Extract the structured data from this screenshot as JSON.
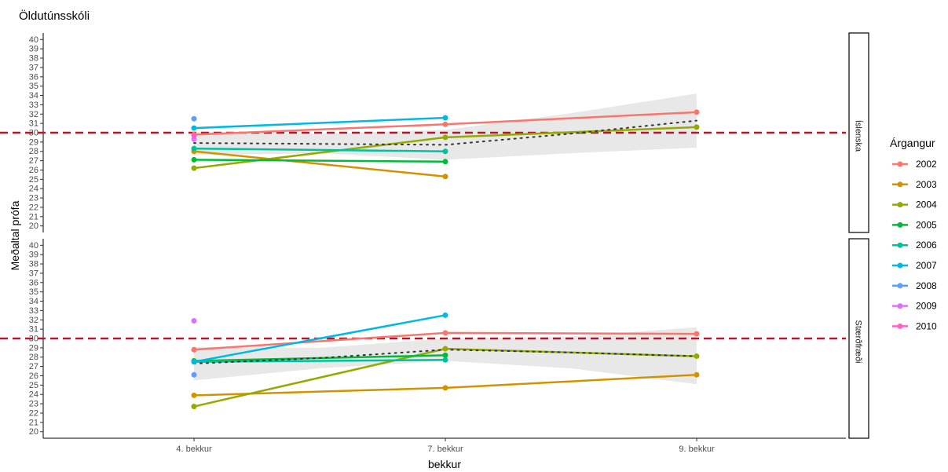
{
  "chart_data": {
    "type": "line",
    "title": "Öldutúnsskóli",
    "xlabel": "bekkur",
    "ylabel": "Meðaltal prófa",
    "categories": [
      "4. bekkur",
      "7. bekkur",
      "9. bekkur"
    ],
    "ylim": [
      19.3,
      40.7
    ],
    "yticks": [
      20,
      21,
      22,
      23,
      24,
      25,
      26,
      27,
      28,
      29,
      30,
      31,
      32,
      33,
      34,
      35,
      36,
      37,
      38,
      39,
      40
    ],
    "reference_line": 30,
    "reference_color": "#b2182b",
    "grid": false,
    "legend": {
      "title": "Árgangur",
      "position": "right",
      "entries": [
        {
          "name": "2002",
          "color": "#F8766D"
        },
        {
          "name": "2003",
          "color": "#D39200"
        },
        {
          "name": "2004",
          "color": "#93AA00"
        },
        {
          "name": "2005",
          "color": "#00BA38"
        },
        {
          "name": "2006",
          "color": "#00C19F"
        },
        {
          "name": "2007",
          "color": "#00B9E3"
        },
        {
          "name": "2008",
          "color": "#619CFF"
        },
        {
          "name": "2009",
          "color": "#DB72FB"
        },
        {
          "name": "2010",
          "color": "#FF61C3"
        }
      ]
    },
    "panels": [
      {
        "strip": "Íslenska",
        "series": [
          {
            "name": "2002",
            "points": [
              [
                0,
                29.8
              ],
              [
                1,
                30.9
              ],
              [
                2,
                32.2
              ]
            ]
          },
          {
            "name": "2003",
            "points": [
              [
                0,
                28.0
              ],
              [
                1,
                25.3
              ]
            ]
          },
          {
            "name": "2004",
            "points": [
              [
                0,
                26.2
              ],
              [
                1,
                29.5
              ],
              [
                2,
                30.6
              ]
            ]
          },
          {
            "name": "2005",
            "points": [
              [
                0,
                27.1
              ],
              [
                1,
                26.9
              ]
            ]
          },
          {
            "name": "2006",
            "points": [
              [
                0,
                28.3
              ],
              [
                1,
                28.0
              ]
            ]
          },
          {
            "name": "2007",
            "points": [
              [
                0,
                30.5
              ],
              [
                1,
                31.6
              ]
            ]
          },
          {
            "name": "2008",
            "points": [
              [
                0,
                31.5
              ]
            ]
          },
          {
            "name": "2009",
            "points": [
              [
                0,
                29.3
              ]
            ]
          },
          {
            "name": "2010",
            "points": [
              [
                0,
                29.7
              ]
            ]
          }
        ],
        "trend": {
          "points": [
            [
              0,
              28.9
            ],
            [
              0.5,
              28.8
            ],
            [
              1,
              28.7
            ],
            [
              1.5,
              29.9
            ],
            [
              2,
              31.3
            ]
          ],
          "ribbon_low": [
            [
              0,
              27.6
            ],
            [
              0.5,
              27.8
            ],
            [
              1,
              27.1
            ],
            [
              1.5,
              27.8
            ],
            [
              2,
              28.4
            ]
          ],
          "ribbon_high": [
            [
              0,
              30.1
            ],
            [
              0.5,
              29.9
            ],
            [
              1,
              30.3
            ],
            [
              1.5,
              32.1
            ],
            [
              2,
              34.2
            ]
          ]
        }
      },
      {
        "strip": "Stærðfræði",
        "series": [
          {
            "name": "2002",
            "points": [
              [
                0,
                28.8
              ],
              [
                1,
                30.6
              ],
              [
                2,
                30.5
              ]
            ]
          },
          {
            "name": "2003",
            "points": [
              [
                0,
                23.9
              ],
              [
                1,
                24.7
              ],
              [
                2,
                26.1
              ]
            ]
          },
          {
            "name": "2004",
            "points": [
              [
                0,
                22.7
              ],
              [
                1,
                28.9
              ],
              [
                2,
                28.1
              ]
            ]
          },
          {
            "name": "2005",
            "points": [
              [
                0,
                27.6
              ],
              [
                1,
                28.2
              ]
            ]
          },
          {
            "name": "2006",
            "points": [
              [
                0,
                27.5
              ],
              [
                1,
                27.7
              ]
            ]
          },
          {
            "name": "2007",
            "points": [
              [
                0,
                27.5
              ],
              [
                1,
                32.5
              ]
            ]
          },
          {
            "name": "2008",
            "points": [
              [
                0,
                26.1
              ]
            ]
          },
          {
            "name": "2009",
            "points": [
              [
                0,
                31.9
              ]
            ]
          }
        ],
        "trend": {
          "points": [
            [
              0,
              27.3
            ],
            [
              0.5,
              27.9
            ],
            [
              1,
              28.8
            ],
            [
              1.5,
              28.5
            ],
            [
              2,
              28.1
            ]
          ],
          "ribbon_low": [
            [
              0,
              25.5
            ],
            [
              0.5,
              26.8
            ],
            [
              1,
              27.6
            ],
            [
              1.5,
              26.8
            ],
            [
              2,
              25.1
            ]
          ],
          "ribbon_high": [
            [
              0,
              29.1
            ],
            [
              0.5,
              29.0
            ],
            [
              1,
              30.0
            ],
            [
              1.5,
              30.2
            ],
            [
              2,
              31.2
            ]
          ]
        }
      }
    ]
  }
}
